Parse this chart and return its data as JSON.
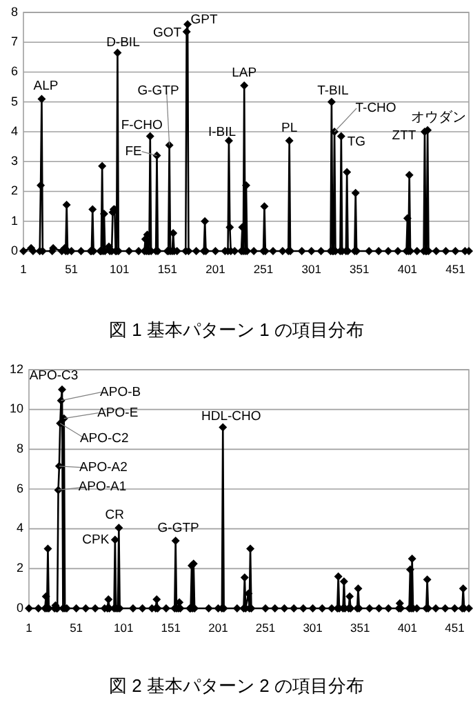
{
  "chart_data": [
    {
      "type": "line",
      "title": "図 1 基本パターン 1 の項目分布",
      "grid": "y",
      "marker": "diamond",
      "line_style": "solid",
      "xlim": [
        1,
        465
      ],
      "xticks": [
        1,
        51,
        101,
        151,
        201,
        251,
        301,
        351,
        401,
        451
      ],
      "ylim": [
        0,
        8
      ],
      "yticks": [
        0,
        1,
        2,
        3,
        4,
        5,
        6,
        7,
        8
      ],
      "x": [
        1,
        9,
        11,
        18,
        19,
        20,
        21,
        31,
        32,
        41,
        44,
        45,
        46,
        47,
        51,
        61,
        71,
        72,
        73,
        74,
        81,
        82,
        83,
        84,
        85,
        86,
        90,
        91,
        93,
        94,
        95,
        96,
        97,
        98,
        99,
        100,
        111,
        121,
        127,
        128,
        129,
        130,
        131,
        132,
        133,
        134,
        139,
        140,
        141,
        151,
        152,
        153,
        154,
        156,
        157,
        158,
        161,
        170,
        171,
        172,
        173,
        181,
        189,
        190,
        191,
        201,
        211,
        214,
        215,
        216,
        217,
        221,
        228,
        229,
        230,
        231,
        232,
        233,
        234,
        241,
        251,
        252,
        253,
        261,
        271,
        277,
        278,
        279,
        291,
        301,
        311,
        321,
        322,
        323,
        324,
        325,
        326,
        331,
        332,
        333,
        337,
        338,
        339,
        346,
        347,
        348,
        361,
        371,
        381,
        391,
        400,
        401,
        402,
        403,
        404,
        411,
        418,
        419,
        420,
        421,
        422,
        423,
        431,
        441,
        451,
        461,
        465
      ],
      "series": [
        {
          "color": "#000000",
          "values": [
            0,
            0.1,
            0,
            0,
            2.2,
            5.1,
            0,
            0,
            0.1,
            0,
            0.1,
            0,
            1.55,
            0,
            0,
            0,
            0,
            0,
            1.4,
            0,
            0,
            0,
            2.85,
            0,
            1.25,
            0,
            0.15,
            0,
            0,
            1.3,
            1.4,
            1.4,
            0,
            0,
            6.65,
            0,
            0,
            0,
            0,
            0.4,
            0,
            0.55,
            0,
            0,
            3.85,
            0,
            0,
            3.2,
            0,
            0,
            0,
            3.55,
            0,
            0,
            0.6,
            0,
            0,
            0,
            7.35,
            7.6,
            0,
            0,
            0,
            1.0,
            0,
            0,
            0,
            0,
            3.7,
            0.8,
            0,
            0,
            0,
            0.8,
            0,
            5.55,
            0,
            2.2,
            0,
            0,
            0,
            1.5,
            0,
            0,
            0,
            0,
            3.7,
            0,
            0,
            0,
            0,
            0,
            5.0,
            0,
            0,
            4.0,
            0,
            0,
            3.85,
            0,
            0,
            2.65,
            0,
            0,
            1.95,
            0,
            0,
            0,
            0,
            0,
            0,
            1.1,
            0,
            2.55,
            0,
            0,
            0,
            4.0,
            0,
            0,
            4.05,
            0,
            0,
            0,
            0,
            0,
            0
          ]
        }
      ],
      "annotations": [
        {
          "text": "ALP",
          "x": 20,
          "y": 5.1
        },
        {
          "text": "D-BIL",
          "x": 99,
          "y": 6.65
        },
        {
          "text": "GOT",
          "x": 171,
          "y": 7.35
        },
        {
          "text": "GPT",
          "x": 172,
          "y": 7.6
        },
        {
          "text": "G-GTP",
          "x": 153,
          "y": 3.55
        },
        {
          "text": "F-CHO",
          "x": 133,
          "y": 3.85
        },
        {
          "text": "FE",
          "x": 140,
          "y": 3.2
        },
        {
          "text": "I-BIL",
          "x": 215,
          "y": 3.7
        },
        {
          "text": "LAP",
          "x": 231,
          "y": 5.55
        },
        {
          "text": "PL",
          "x": 278,
          "y": 3.7
        },
        {
          "text": "T-BIL",
          "x": 322,
          "y": 5.0
        },
        {
          "text": "T-CHO",
          "x": 325,
          "y": 4.0
        },
        {
          "text": "TG",
          "x": 332,
          "y": 3.85
        },
        {
          "text": "ZTT",
          "x": 419,
          "y": 4.0
        },
        {
          "text": "オウダン",
          "x": 422,
          "y": 4.05
        }
      ]
    },
    {
      "type": "line",
      "title": "図 2 基本パターン 2 の項目分布",
      "grid": "y",
      "marker": "diamond",
      "line_style": "solid",
      "xlim": [
        1,
        466
      ],
      "xticks": [
        1,
        51,
        101,
        151,
        201,
        251,
        301,
        351,
        401,
        451
      ],
      "ylim": [
        0,
        12
      ],
      "yticks": [
        0,
        2,
        4,
        6,
        8,
        10,
        12
      ],
      "x": [
        1,
        11,
        18,
        19,
        20,
        21,
        22,
        28,
        29,
        30,
        31,
        32,
        33,
        34,
        35,
        36,
        37,
        38,
        39,
        41,
        51,
        61,
        71,
        81,
        84,
        85,
        86,
        91,
        92,
        93,
        95,
        96,
        97,
        111,
        121,
        131,
        135,
        136,
        137,
        146,
        155,
        156,
        157,
        159,
        160,
        161,
        171,
        172,
        173,
        174,
        175,
        176,
        191,
        201,
        205,
        206,
        207,
        221,
        228,
        229,
        230,
        233,
        234,
        235,
        236,
        251,
        261,
        271,
        281,
        291,
        301,
        311,
        321,
        327,
        328,
        329,
        333,
        334,
        335,
        339,
        340,
        341,
        348,
        349,
        350,
        361,
        371,
        381,
        392,
        393,
        394,
        403,
        404,
        405,
        406,
        407,
        411,
        421,
        422,
        423,
        431,
        441,
        451,
        459,
        460,
        461,
        466
      ],
      "series": [
        {
          "color": "#000000",
          "values": [
            0,
            0,
            0,
            0.6,
            0,
            3.0,
            0,
            0,
            0.15,
            0,
            0,
            5.95,
            7.15,
            9.3,
            10.45,
            11.0,
            0,
            9.55,
            0,
            0,
            0,
            0,
            0,
            0,
            0,
            0.45,
            0,
            0,
            3.45,
            0,
            0,
            4.05,
            0,
            0,
            0,
            0,
            0,
            0.45,
            0,
            0,
            0,
            3.4,
            0,
            0,
            0.3,
            0,
            0,
            0,
            2.15,
            0,
            2.25,
            0,
            0,
            0,
            0,
            9.1,
            0,
            0,
            0,
            1.55,
            0,
            0.75,
            0,
            3.0,
            0,
            0,
            0,
            0,
            0,
            0,
            0,
            0,
            0,
            0,
            1.6,
            0,
            0,
            1.35,
            0,
            0,
            0.6,
            0,
            0,
            1.0,
            0,
            0,
            0,
            0,
            0,
            0.25,
            0,
            0,
            1.95,
            0,
            2.5,
            0,
            0,
            0,
            1.45,
            0,
            0,
            0,
            0,
            0,
            1.0,
            0,
            0
          ]
        }
      ],
      "annotations": [
        {
          "text": "APO-C3",
          "x": 36,
          "y": 11.0
        },
        {
          "text": "APO-B",
          "x": 35,
          "y": 10.45
        },
        {
          "text": "APO-E",
          "x": 38,
          "y": 9.55
        },
        {
          "text": "APO-C2",
          "x": 34,
          "y": 9.3
        },
        {
          "text": "APO-A2",
          "x": 33,
          "y": 7.15
        },
        {
          "text": "APO-A1",
          "x": 32,
          "y": 5.95
        },
        {
          "text": "HDL-CHO",
          "x": 206,
          "y": 9.1
        },
        {
          "text": "CR",
          "x": 96,
          "y": 4.05
        },
        {
          "text": "CPK",
          "x": 92,
          "y": 3.45
        },
        {
          "text": "G-GTP",
          "x": 156,
          "y": 3.4
        }
      ]
    }
  ]
}
